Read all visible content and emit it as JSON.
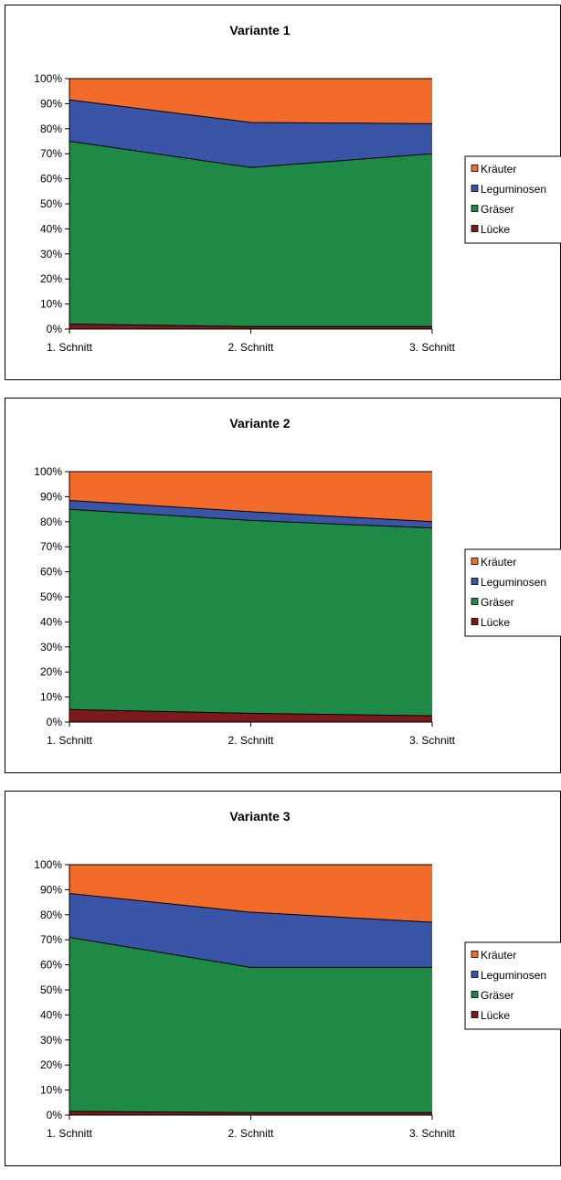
{
  "chart_data": [
    {
      "type": "area",
      "stacked": "percent",
      "title": "Variante 1",
      "categories": [
        "1. Schnitt",
        "2. Schnitt",
        "3. Schnitt"
      ],
      "yticks": [
        "0%",
        "10%",
        "20%",
        "30%",
        "40%",
        "50%",
        "60%",
        "70%",
        "80%",
        "90%",
        "100%"
      ],
      "ylim": [
        0,
        100
      ],
      "legend_position": "right",
      "series": [
        {
          "name": "Lücke",
          "color": "#7B1A1A",
          "values": [
            2,
            1,
            1
          ]
        },
        {
          "name": "Gräser",
          "color": "#1F8A45",
          "values": [
            73,
            63.5,
            69
          ]
        },
        {
          "name": "Leguminosen",
          "color": "#3A55A8",
          "values": [
            16.5,
            18,
            12
          ]
        },
        {
          "name": "Kräuter",
          "color": "#F26B2A",
          "values": [
            8.5,
            17.5,
            18
          ]
        }
      ]
    },
    {
      "type": "area",
      "stacked": "percent",
      "title": "Variante 2",
      "categories": [
        "1. Schnitt",
        "2. Schnitt",
        "3. Schnitt"
      ],
      "yticks": [
        "0%",
        "10%",
        "20%",
        "30%",
        "40%",
        "50%",
        "60%",
        "70%",
        "80%",
        "90%",
        "100%"
      ],
      "ylim": [
        0,
        100
      ],
      "legend_position": "right",
      "series": [
        {
          "name": "Lücke",
          "color": "#7B1A1A",
          "values": [
            5,
            3.5,
            2.5
          ]
        },
        {
          "name": "Gräser",
          "color": "#1F8A45",
          "values": [
            80,
            77,
            75
          ]
        },
        {
          "name": "Leguminosen",
          "color": "#3A55A8",
          "values": [
            3.5,
            3.5,
            2.5
          ]
        },
        {
          "name": "Kräuter",
          "color": "#F26B2A",
          "values": [
            11.5,
            16,
            20
          ]
        }
      ]
    },
    {
      "type": "area",
      "stacked": "percent",
      "title": "Variante 3",
      "categories": [
        "1. Schnitt",
        "2. Schnitt",
        "3. Schnitt"
      ],
      "yticks": [
        "0%",
        "10%",
        "20%",
        "30%",
        "40%",
        "50%",
        "60%",
        "70%",
        "80%",
        "90%",
        "100%"
      ],
      "ylim": [
        0,
        100
      ],
      "legend_position": "right",
      "series": [
        {
          "name": "Lücke",
          "color": "#7B1A1A",
          "values": [
            1.5,
            1,
            1
          ]
        },
        {
          "name": "Gräser",
          "color": "#1F8A45",
          "values": [
            69.5,
            58,
            58
          ]
        },
        {
          "name": "Leguminosen",
          "color": "#3A55A8",
          "values": [
            17.5,
            22,
            18
          ]
        },
        {
          "name": "Kräuter",
          "color": "#F26B2A",
          "values": [
            11.5,
            19,
            23
          ]
        }
      ]
    }
  ]
}
